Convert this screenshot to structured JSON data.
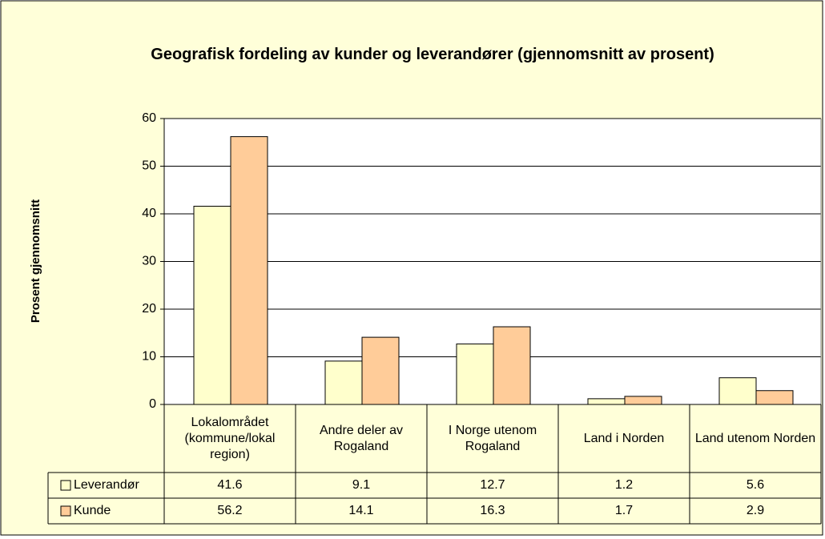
{
  "chart_data": {
    "type": "bar",
    "title": "Geografisk fordeling av kunder og leverandører (gjennomsnitt av prosent)",
    "y_label": "Prosent gjennomsnitt",
    "categories": [
      "Lokalområdet (kommune/lokal region)",
      "Andre deler av Rogaland",
      "I Norge utenom Rogaland",
      "Land i Norden",
      "Land utenom Norden"
    ],
    "series": [
      {
        "name": "Leverandør",
        "color": "#ffffcc",
        "values": [
          41.6,
          9.1,
          12.7,
          1.2,
          5.6
        ]
      },
      {
        "name": "Kunde",
        "color": "#ffcc99",
        "values": [
          56.2,
          14.1,
          16.3,
          1.7,
          2.9
        ]
      }
    ],
    "ylim": [
      0,
      60
    ],
    "yticks": [
      0,
      10,
      20,
      30,
      40,
      50,
      60
    ],
    "grid": true,
    "data_table": true
  }
}
